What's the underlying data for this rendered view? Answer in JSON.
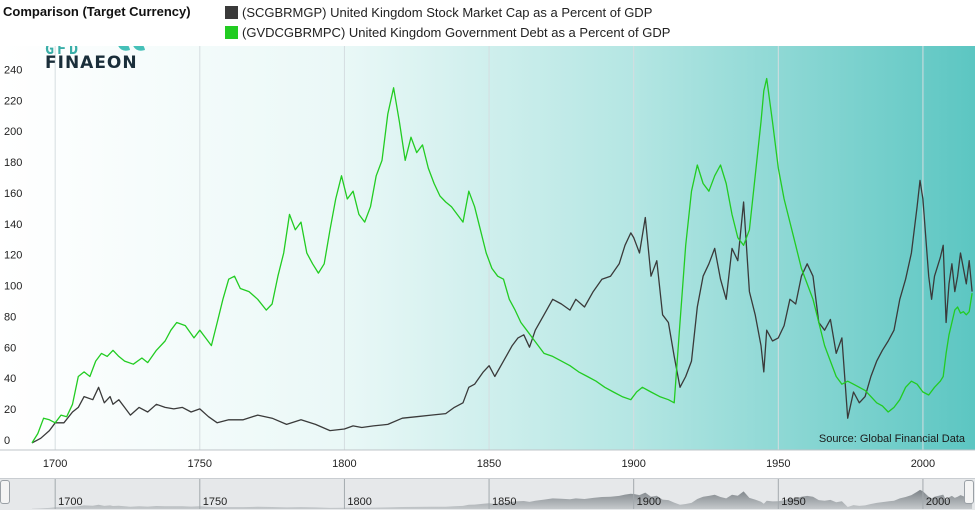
{
  "title": "Comparison (Target Currency)",
  "legend": [
    {
      "label": "(SCGBRMGP) United Kingdom Stock Market Cap as a Percent of GDP",
      "color": "#3a3a3a"
    },
    {
      "label": "(GVDCGBRMPC) United Kingdom Government Debt as a Percent of GDP",
      "color": "#22cc22"
    }
  ],
  "logo": {
    "line1": "GFD",
    "line2": "FINAEON"
  },
  "source": "Source: Global Financial Data",
  "navigator": {
    "ticks": [
      "1700",
      "1750",
      "1800",
      "1850",
      "1900",
      "1950",
      "2000"
    ]
  },
  "colors": {
    "accent_teal": "#5cc6c2",
    "background_white": "#ffffff"
  },
  "chart_data": {
    "type": "line",
    "title": "Comparison (Target Currency)",
    "xlabel": "",
    "ylabel": "",
    "xlim": [
      1683,
      2018
    ],
    "ylim": [
      0,
      250
    ],
    "x_ticks": [
      1700,
      1750,
      1800,
      1850,
      1900,
      1950,
      2000
    ],
    "y_ticks": [
      0,
      20,
      40,
      60,
      80,
      100,
      120,
      140,
      160,
      180,
      200,
      220,
      240
    ],
    "grid": true,
    "series": [
      {
        "name": "(SCGBRMGP) United Kingdom Stock Market Cap as a Percent of GDP",
        "color": "#3a3a3a",
        "points": [
          [
            1692,
            2
          ],
          [
            1695,
            5
          ],
          [
            1698,
            10
          ],
          [
            1700,
            15
          ],
          [
            1703,
            15
          ],
          [
            1706,
            22
          ],
          [
            1708,
            25
          ],
          [
            1710,
            32
          ],
          [
            1713,
            30
          ],
          [
            1715,
            38
          ],
          [
            1717,
            28
          ],
          [
            1719,
            32
          ],
          [
            1720,
            27
          ],
          [
            1722,
            30
          ],
          [
            1724,
            25
          ],
          [
            1726,
            20
          ],
          [
            1729,
            25
          ],
          [
            1732,
            22
          ],
          [
            1735,
            27
          ],
          [
            1738,
            25
          ],
          [
            1741,
            24
          ],
          [
            1744,
            25
          ],
          [
            1747,
            22
          ],
          [
            1750,
            24
          ],
          [
            1753,
            19
          ],
          [
            1756,
            15
          ],
          [
            1760,
            17
          ],
          [
            1765,
            17
          ],
          [
            1770,
            20
          ],
          [
            1775,
            18
          ],
          [
            1780,
            14
          ],
          [
            1785,
            17
          ],
          [
            1790,
            14
          ],
          [
            1795,
            10
          ],
          [
            1800,
            11
          ],
          [
            1803,
            13
          ],
          [
            1806,
            12
          ],
          [
            1810,
            13
          ],
          [
            1815,
            14
          ],
          [
            1820,
            18
          ],
          [
            1825,
            19
          ],
          [
            1830,
            20
          ],
          [
            1835,
            21
          ],
          [
            1838,
            25
          ],
          [
            1841,
            28
          ],
          [
            1843,
            38
          ],
          [
            1845,
            40
          ],
          [
            1848,
            48
          ],
          [
            1850,
            52
          ],
          [
            1852,
            45
          ],
          [
            1855,
            55
          ],
          [
            1858,
            65
          ],
          [
            1860,
            70
          ],
          [
            1862,
            72
          ],
          [
            1864,
            64
          ],
          [
            1866,
            75
          ],
          [
            1869,
            85
          ],
          [
            1872,
            95
          ],
          [
            1875,
            92
          ],
          [
            1878,
            88
          ],
          [
            1880,
            95
          ],
          [
            1883,
            90
          ],
          [
            1886,
            100
          ],
          [
            1889,
            108
          ],
          [
            1892,
            110
          ],
          [
            1895,
            118
          ],
          [
            1897,
            130
          ],
          [
            1899,
            138
          ],
          [
            1900,
            135
          ],
          [
            1902,
            125
          ],
          [
            1904,
            148
          ],
          [
            1906,
            110
          ],
          [
            1908,
            120
          ],
          [
            1910,
            85
          ],
          [
            1912,
            80
          ],
          [
            1914,
            58
          ],
          [
            1916,
            38
          ],
          [
            1918,
            45
          ],
          [
            1920,
            55
          ],
          [
            1922,
            90
          ],
          [
            1924,
            110
          ],
          [
            1926,
            118
          ],
          [
            1928,
            128
          ],
          [
            1930,
            108
          ],
          [
            1932,
            95
          ],
          [
            1934,
            128
          ],
          [
            1936,
            120
          ],
          [
            1938,
            158
          ],
          [
            1940,
            100
          ],
          [
            1942,
            85
          ],
          [
            1944,
            65
          ],
          [
            1945,
            48
          ],
          [
            1946,
            75
          ],
          [
            1948,
            68
          ],
          [
            1950,
            70
          ],
          [
            1952,
            78
          ],
          [
            1954,
            95
          ],
          [
            1956,
            92
          ],
          [
            1958,
            110
          ],
          [
            1960,
            118
          ],
          [
            1962,
            110
          ],
          [
            1964,
            80
          ],
          [
            1966,
            75
          ],
          [
            1968,
            82
          ],
          [
            1970,
            60
          ],
          [
            1972,
            70
          ],
          [
            1974,
            18
          ],
          [
            1976,
            35
          ],
          [
            1978,
            28
          ],
          [
            1980,
            32
          ],
          [
            1982,
            45
          ],
          [
            1984,
            55
          ],
          [
            1986,
            62
          ],
          [
            1988,
            68
          ],
          [
            1990,
            75
          ],
          [
            1992,
            95
          ],
          [
            1994,
            108
          ],
          [
            1996,
            125
          ],
          [
            1998,
            155
          ],
          [
            1999,
            172
          ],
          [
            2000,
            160
          ],
          [
            2002,
            110
          ],
          [
            2003,
            95
          ],
          [
            2004,
            110
          ],
          [
            2006,
            122
          ],
          [
            2007,
            130
          ],
          [
            2008,
            80
          ],
          [
            2009,
            105
          ],
          [
            2010,
            118
          ],
          [
            2011,
            100
          ],
          [
            2012,
            110
          ],
          [
            2013,
            125
          ],
          [
            2014,
            115
          ],
          [
            2015,
            105
          ],
          [
            2016,
            120
          ],
          [
            2017,
            100
          ]
        ]
      },
      {
        "name": "(GVDCGBRMPC) United Kingdom Government Debt as a Percent of GDP",
        "color": "#22cc22",
        "points": [
          [
            1692,
            2
          ],
          [
            1694,
            8
          ],
          [
            1696,
            18
          ],
          [
            1698,
            17
          ],
          [
            1700,
            15
          ],
          [
            1702,
            20
          ],
          [
            1704,
            19
          ],
          [
            1706,
            27
          ],
          [
            1708,
            45
          ],
          [
            1710,
            48
          ],
          [
            1712,
            45
          ],
          [
            1714,
            55
          ],
          [
            1716,
            60
          ],
          [
            1718,
            58
          ],
          [
            1720,
            62
          ],
          [
            1722,
            58
          ],
          [
            1724,
            55
          ],
          [
            1727,
            53
          ],
          [
            1730,
            57
          ],
          [
            1732,
            54
          ],
          [
            1735,
            62
          ],
          [
            1738,
            68
          ],
          [
            1740,
            75
          ],
          [
            1742,
            80
          ],
          [
            1745,
            78
          ],
          [
            1748,
            70
          ],
          [
            1750,
            75
          ],
          [
            1752,
            70
          ],
          [
            1754,
            65
          ],
          [
            1756,
            80
          ],
          [
            1758,
            95
          ],
          [
            1760,
            108
          ],
          [
            1762,
            110
          ],
          [
            1764,
            102
          ],
          [
            1767,
            100
          ],
          [
            1770,
            95
          ],
          [
            1773,
            88
          ],
          [
            1775,
            92
          ],
          [
            1777,
            110
          ],
          [
            1779,
            125
          ],
          [
            1781,
            150
          ],
          [
            1783,
            140
          ],
          [
            1785,
            145
          ],
          [
            1787,
            125
          ],
          [
            1789,
            118
          ],
          [
            1791,
            112
          ],
          [
            1793,
            118
          ],
          [
            1795,
            140
          ],
          [
            1797,
            160
          ],
          [
            1799,
            175
          ],
          [
            1801,
            160
          ],
          [
            1803,
            165
          ],
          [
            1805,
            150
          ],
          [
            1807,
            145
          ],
          [
            1809,
            155
          ],
          [
            1811,
            175
          ],
          [
            1813,
            185
          ],
          [
            1815,
            215
          ],
          [
            1817,
            232
          ],
          [
            1819,
            210
          ],
          [
            1821,
            185
          ],
          [
            1823,
            200
          ],
          [
            1825,
            190
          ],
          [
            1827,
            195
          ],
          [
            1829,
            180
          ],
          [
            1831,
            170
          ],
          [
            1833,
            162
          ],
          [
            1835,
            158
          ],
          [
            1837,
            155
          ],
          [
            1839,
            150
          ],
          [
            1841,
            145
          ],
          [
            1843,
            165
          ],
          [
            1845,
            155
          ],
          [
            1847,
            140
          ],
          [
            1849,
            125
          ],
          [
            1851,
            115
          ],
          [
            1853,
            110
          ],
          [
            1855,
            108
          ],
          [
            1857,
            95
          ],
          [
            1859,
            88
          ],
          [
            1861,
            80
          ],
          [
            1863,
            75
          ],
          [
            1865,
            70
          ],
          [
            1867,
            65
          ],
          [
            1869,
            60
          ],
          [
            1872,
            58
          ],
          [
            1875,
            55
          ],
          [
            1878,
            52
          ],
          [
            1881,
            48
          ],
          [
            1884,
            45
          ],
          [
            1887,
            42
          ],
          [
            1890,
            38
          ],
          [
            1893,
            35
          ],
          [
            1896,
            32
          ],
          [
            1899,
            30
          ],
          [
            1901,
            35
          ],
          [
            1903,
            38
          ],
          [
            1906,
            35
          ],
          [
            1909,
            32
          ],
          [
            1912,
            30
          ],
          [
            1914,
            28
          ],
          [
            1916,
            80
          ],
          [
            1918,
            130
          ],
          [
            1920,
            165
          ],
          [
            1922,
            182
          ],
          [
            1924,
            170
          ],
          [
            1926,
            165
          ],
          [
            1928,
            175
          ],
          [
            1930,
            182
          ],
          [
            1932,
            170
          ],
          [
            1934,
            150
          ],
          [
            1936,
            135
          ],
          [
            1938,
            130
          ],
          [
            1940,
            140
          ],
          [
            1942,
            175
          ],
          [
            1944,
            210
          ],
          [
            1945,
            230
          ],
          [
            1946,
            238
          ],
          [
            1948,
            210
          ],
          [
            1950,
            180
          ],
          [
            1952,
            160
          ],
          [
            1954,
            145
          ],
          [
            1956,
            130
          ],
          [
            1958,
            115
          ],
          [
            1960,
            105
          ],
          [
            1962,
            95
          ],
          [
            1964,
            80
          ],
          [
            1966,
            65
          ],
          [
            1968,
            55
          ],
          [
            1970,
            45
          ],
          [
            1972,
            40
          ],
          [
            1974,
            42
          ],
          [
            1976,
            40
          ],
          [
            1978,
            38
          ],
          [
            1980,
            36
          ],
          [
            1982,
            32
          ],
          [
            1984,
            28
          ],
          [
            1986,
            26
          ],
          [
            1988,
            22
          ],
          [
            1990,
            25
          ],
          [
            1992,
            30
          ],
          [
            1994,
            38
          ],
          [
            1996,
            42
          ],
          [
            1998,
            40
          ],
          [
            2000,
            35
          ],
          [
            2002,
            33
          ],
          [
            2004,
            38
          ],
          [
            2006,
            42
          ],
          [
            2007,
            45
          ],
          [
            2008,
            60
          ],
          [
            2009,
            72
          ],
          [
            2010,
            80
          ],
          [
            2011,
            88
          ],
          [
            2012,
            90
          ],
          [
            2013,
            86
          ],
          [
            2014,
            87
          ],
          [
            2015,
            85
          ],
          [
            2016,
            87
          ],
          [
            2017,
            99
          ]
        ]
      }
    ]
  }
}
